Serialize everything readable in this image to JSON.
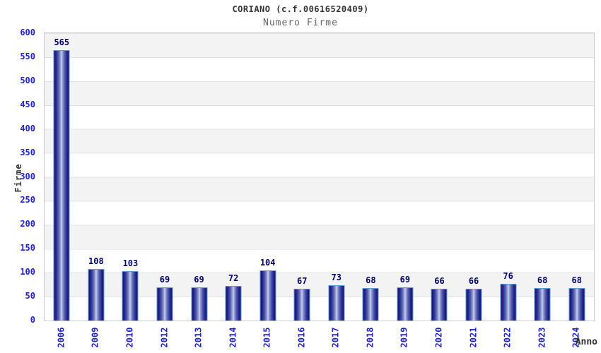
{
  "header": {
    "title": "CORIANO (c.f.00616520409)",
    "subtitle": "Numero Firme"
  },
  "chart_data": {
    "type": "bar",
    "title": "CORIANO (c.f.00616520409)",
    "subtitle": "Numero Firme",
    "xlabel": "Anno",
    "ylabel": "Firme",
    "categories": [
      "2006",
      "2009",
      "2010",
      "2012",
      "2013",
      "2014",
      "2015",
      "2016",
      "2017",
      "2018",
      "2019",
      "2020",
      "2021",
      "2022",
      "2023",
      "2024"
    ],
    "values": [
      565,
      108,
      103,
      69,
      69,
      72,
      104,
      67,
      73,
      68,
      69,
      66,
      66,
      76,
      68,
      68
    ],
    "ylim": [
      0,
      600
    ],
    "yticks": [
      0,
      50,
      100,
      150,
      200,
      250,
      300,
      350,
      400,
      450,
      500,
      550,
      600
    ],
    "grid": "horizontal-bands-alternating",
    "legend": "none",
    "bar_labels_shown": true,
    "colors": {
      "bar_dark": "#16166b",
      "bar_light": "#c9d1f2",
      "bar_border": "#5b9bd5",
      "value_label": "#000066",
      "tick_label": "#2222cc",
      "band_gray": "#f3f3f3",
      "band_white": "#ffffff",
      "plot_border": "#cccccc",
      "title_color": "#333333",
      "subtitle_color": "#666666"
    }
  }
}
